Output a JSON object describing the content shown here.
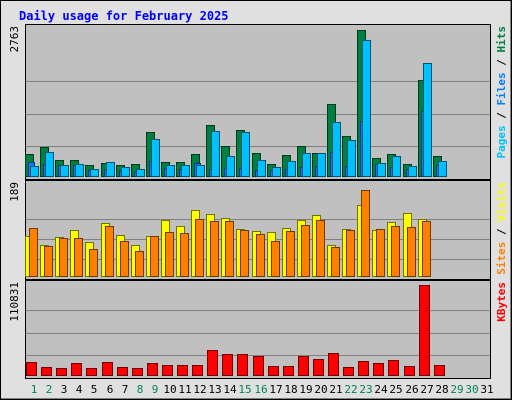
{
  "title": "Daily usage for February 2025",
  "colors": {
    "page_bg": "#e0e0e0",
    "panel_bg": "#c0c0c0",
    "hits": "#008040",
    "files": "#0080ff",
    "pages": "#00c0ff",
    "visits": "#ffff00",
    "sites": "#ff8000",
    "kbytes": "#ff0000",
    "title": "#0000ff",
    "weekday": "#000000",
    "weekend": "#00805c"
  },
  "chart_data": {
    "type": "bar",
    "title": "Daily usage for February 2025",
    "categories": [
      "1",
      "2",
      "3",
      "4",
      "5",
      "6",
      "7",
      "8",
      "9",
      "10",
      "11",
      "12",
      "13",
      "14",
      "15",
      "16",
      "17",
      "18",
      "19",
      "20",
      "21",
      "22",
      "23",
      "24",
      "25",
      "26",
      "27",
      "28",
      "29",
      "30",
      "31"
    ],
    "weekend_days": [
      "1",
      "2",
      "8",
      "9",
      "15",
      "16",
      "22",
      "23",
      "29",
      "30"
    ],
    "panels": [
      {
        "name": "hits-files-pages",
        "ymax_label": "2763",
        "ymax": 2763,
        "legend": [
          {
            "text": "Pages",
            "color_key": "pages"
          },
          {
            "text": " / ",
            "color_key": "weekday"
          },
          {
            "text": "Files",
            "color_key": "files"
          },
          {
            "text": " / ",
            "color_key": "weekday"
          },
          {
            "text": "Hits",
            "color_key": "hits"
          }
        ],
        "series": [
          {
            "name": "Hits",
            "color_key": "hits",
            "values": [
              420,
              540,
              300,
              300,
              200,
              240,
              200,
              220,
              820,
              270,
              270,
              410,
              960,
              570,
              870,
              430,
              220,
              400,
              560,
              440,
              1350,
              760,
              2740,
              330,
              410,
              230,
              1800,
              380,
              0,
              0,
              0
            ]
          },
          {
            "name": "Files",
            "color_key": "files",
            "values": [
              260,
              230,
              210,
              210,
              110,
              140,
              90,
              70,
              280,
              150,
              140,
              240,
              130,
              150,
              150,
              110,
              110,
              130,
              170,
              180,
              460,
              190,
              1040,
              220,
              160,
              130,
              1220,
              200,
              0,
              0,
              0
            ]
          },
          {
            "name": "Pages",
            "color_key": "pages",
            "values": [
              190,
              450,
              210,
              230,
              130,
              260,
              160,
              140,
              690,
              210,
              200,
              200,
              850,
              380,
              820,
              310,
              160,
              290,
              440,
              430,
              1020,
              680,
              2560,
              240,
              380,
              190,
              2130,
              290,
              0,
              0,
              0
            ]
          }
        ]
      },
      {
        "name": "visits-sites",
        "ymax_label": "189",
        "ymax": 189,
        "legend": [
          {
            "text": "Sites",
            "color_key": "sites"
          },
          {
            "text": " / ",
            "color_key": "weekday"
          },
          {
            "text": "Visits",
            "color_key": "visits"
          }
        ],
        "series": [
          {
            "name": "Visits",
            "color_key": "visits",
            "values": [
              84,
              65,
              81,
              95,
              71,
              111,
              85,
              65,
              84,
              116,
              104,
              138,
              129,
              120,
              97,
              94,
              92,
              100,
              116,
              127,
              65,
              97,
              148,
              95,
              113,
              131,
              119,
              0,
              0,
              0,
              0
            ]
          },
          {
            "name": "Sites",
            "color_key": "sites",
            "values": [
              100,
              63,
              78,
              78,
              56,
              103,
              73,
              51,
              84,
              91,
              89,
              119,
              115,
              114,
              95,
              88,
              72,
              94,
              106,
              116,
              60,
              95,
              179,
              98,
              103,
              102,
              115,
              0,
              0,
              0,
              0
            ]
          }
        ]
      },
      {
        "name": "kbytes",
        "ymax_label": "110831",
        "ymax": 110831,
        "legend": [
          {
            "text": "KBytes",
            "color_key": "kbytes"
          }
        ],
        "series": [
          {
            "name": "KBytes",
            "color_key": "kbytes",
            "values": [
              15500,
              10300,
              8700,
              14200,
              8700,
              15500,
              10300,
              8700,
              14200,
              12900,
              12900,
              12900,
              30300,
              25800,
              25800,
              23200,
              11600,
              11600,
              23200,
              19300,
              27100,
              10300,
              16800,
              14200,
              18100,
              11600,
              110831,
              12900,
              0,
              0,
              0
            ]
          }
        ]
      }
    ]
  }
}
